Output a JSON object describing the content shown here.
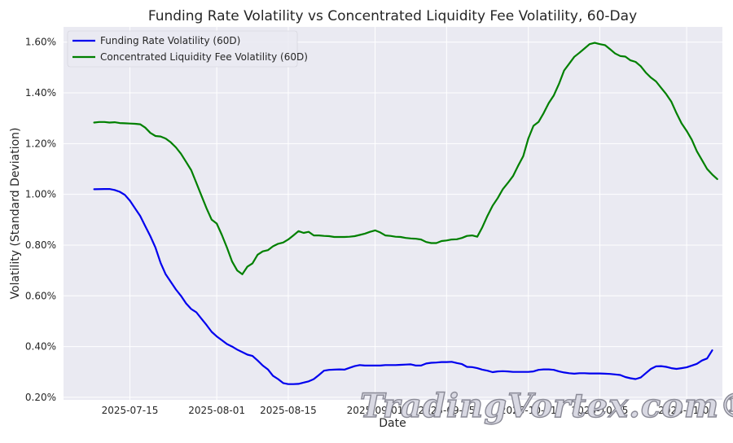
{
  "chart_data": {
    "type": "line",
    "title": "Funding Rate Volatility vs Concentrated Liquidity Fee Volatility, 60-Day",
    "xlabel": "Date",
    "ylabel": "Volatility (Standard Deviation)",
    "x_ticks": [
      "2025-07-15",
      "2025-08-01",
      "2025-08-15",
      "2025-09-01",
      "2025-09-15",
      "2025-10-01",
      "2025-10-15",
      "2025-11-01"
    ],
    "y_ticks": [
      "0.20%",
      "0.40%",
      "0.60%",
      "0.80%",
      "1.00%",
      "1.20%",
      "1.40%",
      "1.60%"
    ],
    "xlim": [
      "2025-07-02",
      "2025-11-08"
    ],
    "ylim": [
      0.0019,
      0.0166
    ],
    "grid": true,
    "legend_position": "top-left",
    "series": [
      {
        "name": "Funding Rate Volatility (60D)",
        "color": "#0000ee",
        "points": [
          [
            "2025-07-08",
            0.0102
          ],
          [
            "2025-07-10",
            0.01021
          ],
          [
            "2025-07-11",
            0.01021
          ],
          [
            "2025-07-12",
            0.01017
          ],
          [
            "2025-07-13",
            0.0101
          ],
          [
            "2025-07-14",
            0.00998
          ],
          [
            "2025-07-15",
            0.00975
          ],
          [
            "2025-07-16",
            0.00945
          ],
          [
            "2025-07-17",
            0.00915
          ],
          [
            "2025-07-18",
            0.00875
          ],
          [
            "2025-07-19",
            0.00835
          ],
          [
            "2025-07-20",
            0.0079
          ],
          [
            "2025-07-21",
            0.0073
          ],
          [
            "2025-07-22",
            0.00685
          ],
          [
            "2025-07-23",
            0.00655
          ],
          [
            "2025-07-24",
            0.00625
          ],
          [
            "2025-07-25",
            0.006
          ],
          [
            "2025-07-26",
            0.0057
          ],
          [
            "2025-07-27",
            0.00548
          ],
          [
            "2025-07-28",
            0.00535
          ],
          [
            "2025-07-29",
            0.0051
          ],
          [
            "2025-07-30",
            0.00485
          ],
          [
            "2025-07-31",
            0.00458
          ],
          [
            "2025-08-01",
            0.0044
          ],
          [
            "2025-08-02",
            0.00425
          ],
          [
            "2025-08-03",
            0.0041
          ],
          [
            "2025-08-04",
            0.004
          ],
          [
            "2025-08-05",
            0.00388
          ],
          [
            "2025-08-06",
            0.00378
          ],
          [
            "2025-08-07",
            0.00368
          ],
          [
            "2025-08-08",
            0.00363
          ],
          [
            "2025-08-09",
            0.00345
          ],
          [
            "2025-08-10",
            0.00325
          ],
          [
            "2025-08-11",
            0.0031
          ],
          [
            "2025-08-12",
            0.00285
          ],
          [
            "2025-08-13",
            0.00272
          ],
          [
            "2025-08-14",
            0.00256
          ],
          [
            "2025-08-15",
            0.00252
          ],
          [
            "2025-08-16",
            0.00252
          ],
          [
            "2025-08-17",
            0.00253
          ],
          [
            "2025-08-18",
            0.00258
          ],
          [
            "2025-08-19",
            0.00263
          ],
          [
            "2025-08-20",
            0.00272
          ],
          [
            "2025-08-21",
            0.00288
          ],
          [
            "2025-08-22",
            0.00305
          ],
          [
            "2025-08-23",
            0.00308
          ],
          [
            "2025-08-24",
            0.00309
          ],
          [
            "2025-08-25",
            0.0031
          ],
          [
            "2025-08-26",
            0.00309
          ],
          [
            "2025-08-27",
            0.00316
          ],
          [
            "2025-08-28",
            0.00323
          ],
          [
            "2025-08-29",
            0.00327
          ],
          [
            "2025-08-30",
            0.00325
          ],
          [
            "2025-08-31",
            0.00325
          ],
          [
            "2025-09-01",
            0.00325
          ],
          [
            "2025-09-02",
            0.00325
          ],
          [
            "2025-09-03",
            0.00327
          ],
          [
            "2025-09-04",
            0.00327
          ],
          [
            "2025-09-05",
            0.00327
          ],
          [
            "2025-09-06",
            0.00328
          ],
          [
            "2025-09-07",
            0.00329
          ],
          [
            "2025-09-08",
            0.0033
          ],
          [
            "2025-09-09",
            0.00325
          ],
          [
            "2025-09-10",
            0.00325
          ],
          [
            "2025-09-11",
            0.00333
          ],
          [
            "2025-09-12",
            0.00336
          ],
          [
            "2025-09-13",
            0.00337
          ],
          [
            "2025-09-14",
            0.00339
          ],
          [
            "2025-09-15",
            0.00339
          ],
          [
            "2025-09-16",
            0.0034
          ],
          [
            "2025-09-17",
            0.00335
          ],
          [
            "2025-09-18",
            0.00331
          ],
          [
            "2025-09-19",
            0.0032
          ],
          [
            "2025-09-20",
            0.00319
          ],
          [
            "2025-09-21",
            0.00315
          ],
          [
            "2025-09-22",
            0.00309
          ],
          [
            "2025-09-23",
            0.00305
          ],
          [
            "2025-09-24",
            0.00299
          ],
          [
            "2025-09-25",
            0.00302
          ],
          [
            "2025-09-26",
            0.00303
          ],
          [
            "2025-09-27",
            0.00302
          ],
          [
            "2025-09-28",
            0.003
          ],
          [
            "2025-09-29",
            0.003
          ],
          [
            "2025-09-30",
            0.003
          ],
          [
            "2025-10-01",
            0.003
          ],
          [
            "2025-10-02",
            0.00302
          ],
          [
            "2025-10-03",
            0.00308
          ],
          [
            "2025-10-04",
            0.0031
          ],
          [
            "2025-10-05",
            0.0031
          ],
          [
            "2025-10-06",
            0.00308
          ],
          [
            "2025-10-07",
            0.00302
          ],
          [
            "2025-10-08",
            0.00298
          ],
          [
            "2025-10-09",
            0.00295
          ],
          [
            "2025-10-10",
            0.00293
          ],
          [
            "2025-10-11",
            0.00295
          ],
          [
            "2025-10-12",
            0.00295
          ],
          [
            "2025-10-13",
            0.00294
          ],
          [
            "2025-10-14",
            0.00294
          ],
          [
            "2025-10-15",
            0.00294
          ],
          [
            "2025-10-16",
            0.00293
          ],
          [
            "2025-10-17",
            0.00292
          ],
          [
            "2025-10-18",
            0.0029
          ],
          [
            "2025-10-19",
            0.00288
          ],
          [
            "2025-10-20",
            0.0028
          ],
          [
            "2025-10-21",
            0.00275
          ],
          [
            "2025-10-22",
            0.00272
          ],
          [
            "2025-10-23",
            0.00278
          ],
          [
            "2025-10-24",
            0.00295
          ],
          [
            "2025-10-25",
            0.00312
          ],
          [
            "2025-10-26",
            0.00322
          ],
          [
            "2025-10-27",
            0.00323
          ],
          [
            "2025-10-28",
            0.0032
          ],
          [
            "2025-10-29",
            0.00315
          ],
          [
            "2025-10-30",
            0.00312
          ],
          [
            "2025-10-31",
            0.00315
          ],
          [
            "2025-11-01",
            0.00318
          ],
          [
            "2025-11-02",
            0.00325
          ],
          [
            "2025-11-03",
            0.00332
          ],
          [
            "2025-11-04",
            0.00345
          ],
          [
            "2025-11-05",
            0.00353
          ],
          [
            "2025-11-06",
            0.00385
          ]
        ]
      },
      {
        "name": "Concentrated Liquidity Fee Volatility (60D)",
        "color": "#008000",
        "points": [
          [
            "2025-07-08",
            0.01283
          ],
          [
            "2025-07-09",
            0.01285
          ],
          [
            "2025-07-10",
            0.01285
          ],
          [
            "2025-07-11",
            0.01283
          ],
          [
            "2025-07-12",
            0.01284
          ],
          [
            "2025-07-13",
            0.01281
          ],
          [
            "2025-07-14",
            0.0128
          ],
          [
            "2025-07-15",
            0.01279
          ],
          [
            "2025-07-16",
            0.01278
          ],
          [
            "2025-07-17",
            0.01276
          ],
          [
            "2025-07-18",
            0.01263
          ],
          [
            "2025-07-19",
            0.01242
          ],
          [
            "2025-07-20",
            0.0123
          ],
          [
            "2025-07-21",
            0.01228
          ],
          [
            "2025-07-22",
            0.0122
          ],
          [
            "2025-07-23",
            0.01205
          ],
          [
            "2025-07-24",
            0.01185
          ],
          [
            "2025-07-25",
            0.0116
          ],
          [
            "2025-07-26",
            0.01128
          ],
          [
            "2025-07-27",
            0.01095
          ],
          [
            "2025-07-28",
            0.01045
          ],
          [
            "2025-07-29",
            0.00995
          ],
          [
            "2025-07-30",
            0.00945
          ],
          [
            "2025-07-31",
            0.009
          ],
          [
            "2025-08-01",
            0.00885
          ],
          [
            "2025-08-02",
            0.0084
          ],
          [
            "2025-08-03",
            0.0079
          ],
          [
            "2025-08-04",
            0.00735
          ],
          [
            "2025-08-05",
            0.007
          ],
          [
            "2025-08-06",
            0.00685
          ],
          [
            "2025-08-07",
            0.00715
          ],
          [
            "2025-08-08",
            0.00728
          ],
          [
            "2025-08-09",
            0.00762
          ],
          [
            "2025-08-10",
            0.00775
          ],
          [
            "2025-08-11",
            0.0078
          ],
          [
            "2025-08-12",
            0.00795
          ],
          [
            "2025-08-13",
            0.00805
          ],
          [
            "2025-08-14",
            0.0081
          ],
          [
            "2025-08-15",
            0.00822
          ],
          [
            "2025-08-16",
            0.00838
          ],
          [
            "2025-08-17",
            0.00855
          ],
          [
            "2025-08-18",
            0.00848
          ],
          [
            "2025-08-19",
            0.00852
          ],
          [
            "2025-08-20",
            0.00838
          ],
          [
            "2025-08-21",
            0.00838
          ],
          [
            "2025-08-22",
            0.00836
          ],
          [
            "2025-08-23",
            0.00835
          ],
          [
            "2025-08-24",
            0.00832
          ],
          [
            "2025-08-25",
            0.00832
          ],
          [
            "2025-08-26",
            0.00832
          ],
          [
            "2025-08-27",
            0.00833
          ],
          [
            "2025-08-28",
            0.00835
          ],
          [
            "2025-08-29",
            0.0084
          ],
          [
            "2025-08-30",
            0.00845
          ],
          [
            "2025-08-31",
            0.00852
          ],
          [
            "2025-09-01",
            0.00858
          ],
          [
            "2025-09-02",
            0.0085
          ],
          [
            "2025-09-03",
            0.00838
          ],
          [
            "2025-09-04",
            0.00836
          ],
          [
            "2025-09-05",
            0.00833
          ],
          [
            "2025-09-06",
            0.00832
          ],
          [
            "2025-09-07",
            0.00828
          ],
          [
            "2025-09-08",
            0.00826
          ],
          [
            "2025-09-09",
            0.00825
          ],
          [
            "2025-09-10",
            0.00822
          ],
          [
            "2025-09-11",
            0.00812
          ],
          [
            "2025-09-12",
            0.00808
          ],
          [
            "2025-09-13",
            0.00808
          ],
          [
            "2025-09-14",
            0.00816
          ],
          [
            "2025-09-15",
            0.00818
          ],
          [
            "2025-09-16",
            0.00822
          ],
          [
            "2025-09-17",
            0.00823
          ],
          [
            "2025-09-18",
            0.00828
          ],
          [
            "2025-09-19",
            0.00836
          ],
          [
            "2025-09-20",
            0.00838
          ],
          [
            "2025-09-21",
            0.00833
          ],
          [
            "2025-09-22",
            0.0087
          ],
          [
            "2025-09-23",
            0.00915
          ],
          [
            "2025-09-24",
            0.00955
          ],
          [
            "2025-09-25",
            0.00985
          ],
          [
            "2025-09-26",
            0.0102
          ],
          [
            "2025-09-27",
            0.01045
          ],
          [
            "2025-09-28",
            0.01072
          ],
          [
            "2025-09-29",
            0.01112
          ],
          [
            "2025-09-30",
            0.0115
          ],
          [
            "2025-10-01",
            0.0122
          ],
          [
            "2025-10-02",
            0.0127
          ],
          [
            "2025-10-03",
            0.01285
          ],
          [
            "2025-10-04",
            0.0132
          ],
          [
            "2025-10-05",
            0.0136
          ],
          [
            "2025-10-06",
            0.0139
          ],
          [
            "2025-10-07",
            0.01435
          ],
          [
            "2025-10-08",
            0.01488
          ],
          [
            "2025-10-09",
            0.01515
          ],
          [
            "2025-10-10",
            0.01542
          ],
          [
            "2025-10-11",
            0.01558
          ],
          [
            "2025-10-12",
            0.01575
          ],
          [
            "2025-10-13",
            0.01592
          ],
          [
            "2025-10-14",
            0.01597
          ],
          [
            "2025-10-15",
            0.01592
          ],
          [
            "2025-10-16",
            0.01588
          ],
          [
            "2025-10-17",
            0.01572
          ],
          [
            "2025-10-18",
            0.01555
          ],
          [
            "2025-10-19",
            0.01545
          ],
          [
            "2025-10-20",
            0.01543
          ],
          [
            "2025-10-21",
            0.01528
          ],
          [
            "2025-10-22",
            0.01522
          ],
          [
            "2025-10-23",
            0.01505
          ],
          [
            "2025-10-24",
            0.0148
          ],
          [
            "2025-10-25",
            0.0146
          ],
          [
            "2025-10-26",
            0.01445
          ],
          [
            "2025-10-27",
            0.0142
          ],
          [
            "2025-10-28",
            0.01395
          ],
          [
            "2025-10-29",
            0.01365
          ],
          [
            "2025-10-30",
            0.0132
          ],
          [
            "2025-10-31",
            0.0128
          ],
          [
            "2025-11-01",
            0.0125
          ],
          [
            "2025-11-02",
            0.01215
          ],
          [
            "2025-11-03",
            0.0117
          ],
          [
            "2025-11-04",
            0.01135
          ],
          [
            "2025-11-05",
            0.011
          ],
          [
            "2025-11-06",
            0.01078
          ],
          [
            "2025-11-07",
            0.0106
          ]
        ]
      }
    ]
  },
  "watermark": {
    "text": "TradingVortex.com®"
  }
}
